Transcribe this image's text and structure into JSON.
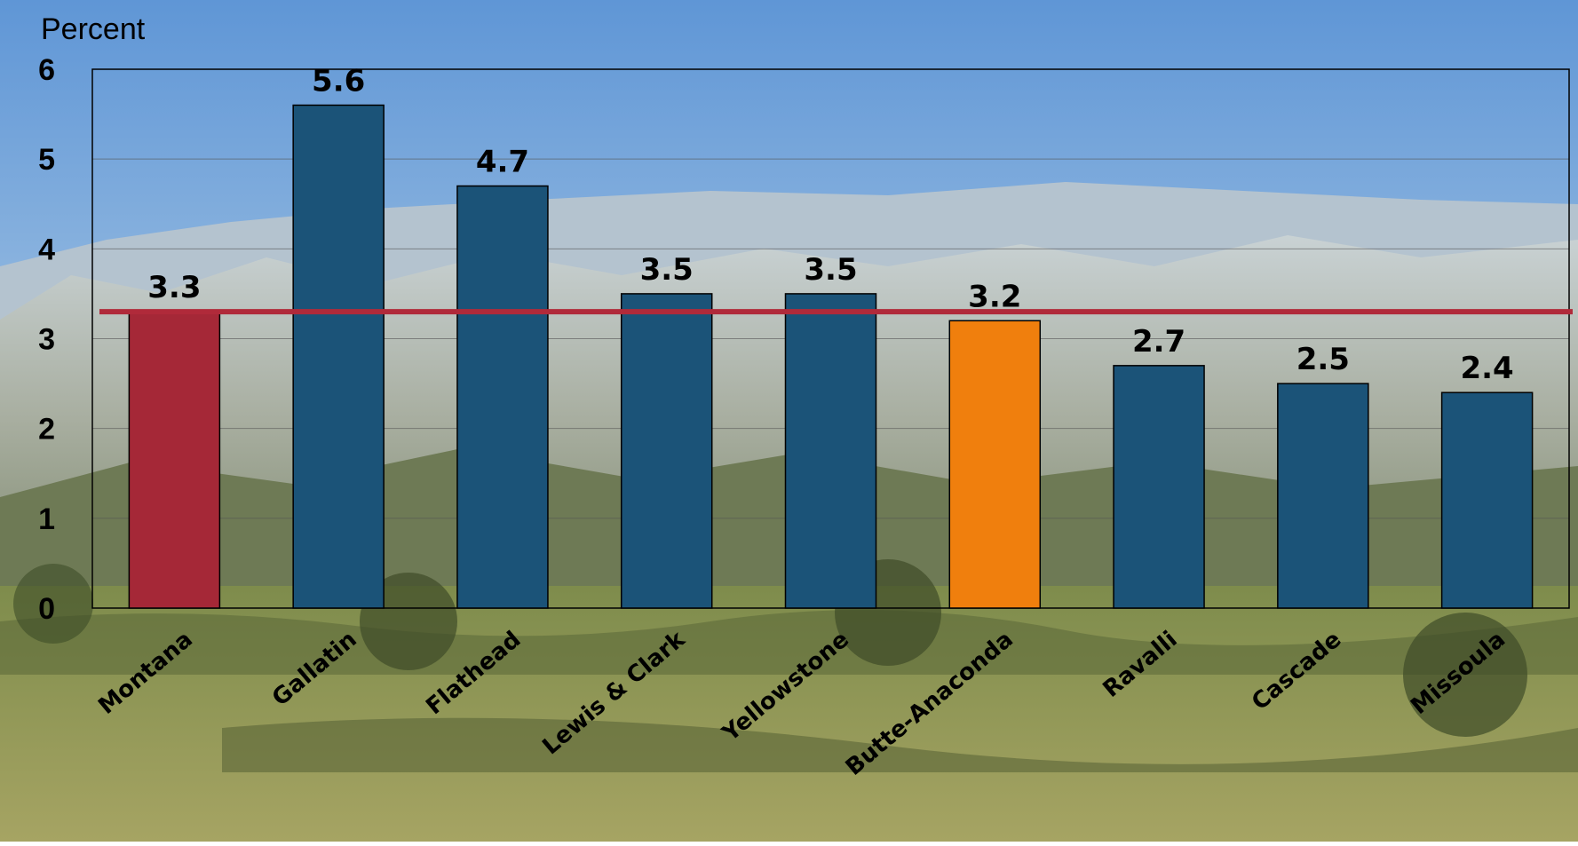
{
  "chart_data": {
    "type": "bar",
    "ylabel": "Percent",
    "ylim": [
      0,
      6
    ],
    "yticks": [
      0,
      1,
      2,
      3,
      4,
      5,
      6
    ],
    "grid": true,
    "categories": [
      "Montana",
      "Gallatin",
      "Flathead",
      "Lewis & Clark",
      "Yellowstone",
      "Butte-Anaconda",
      "Ravalli",
      "Cascade",
      "Missoula"
    ],
    "values": [
      3.3,
      5.6,
      4.7,
      3.5,
      3.5,
      3.2,
      2.7,
      2.5,
      2.4
    ],
    "value_labels": [
      "3.3",
      "5.6",
      "4.7",
      "3.5",
      "3.5",
      "3.2",
      "2.7",
      "2.5",
      "2.4"
    ],
    "bar_colors": [
      "#A52837",
      "#1B5378",
      "#1B5378",
      "#1B5378",
      "#1B5378",
      "#F07F0D",
      "#1B5378",
      "#1B5378",
      "#1B5378"
    ],
    "reference_line": {
      "value": 3.3,
      "color": "#B02A3A"
    }
  }
}
